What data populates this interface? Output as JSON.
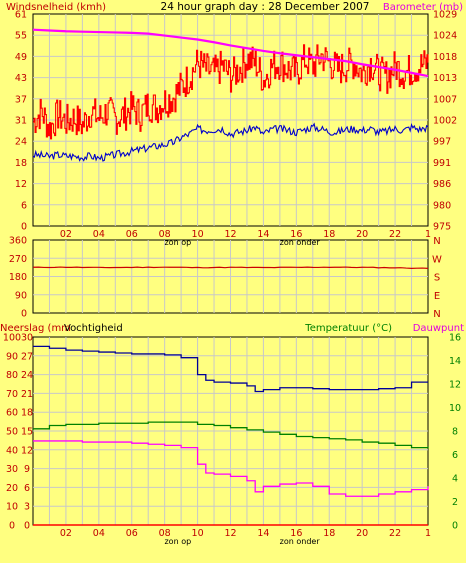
{
  "title": "24 hour graph day : 28 December 2007",
  "colors": {
    "background": "#FFFF80",
    "grid": "#C8C8C8",
    "axis_text": "#C00000",
    "wind_label": "#C00000",
    "baro_label": "#E000E0",
    "temp_label": "#008000",
    "dew_label": "#E000E0",
    "wind": "#FF0000",
    "gust": "#0000CC",
    "pressure": "#FF00FF",
    "direction": "#CC0000",
    "humidity": "#000099",
    "temperature": "#008000",
    "dewpoint": "#FF00FF",
    "rain": "#FF0000"
  },
  "chart_data": [
    {
      "type": "line",
      "ylabel_left": "Windsnelheid (kmh)",
      "ylabel_right": "Barometer (mb)",
      "y_ticks_left": [
        "61",
        "55",
        "49",
        "43",
        "37",
        "31",
        "24",
        "18",
        "12",
        "6",
        "0"
      ],
      "y_ticks_right": [
        "1029",
        "1024",
        "1018",
        "1013",
        "1007",
        "1002",
        "997",
        "991",
        "986",
        "980",
        "975"
      ],
      "x_ticks": [
        "02",
        "04",
        "06",
        "08",
        "10",
        "12",
        "14",
        "16",
        "18",
        "20",
        "22",
        "1"
      ],
      "x_markers": [
        "zon op",
        "zon onder"
      ],
      "x_marker_positions": [
        8.8,
        16.2
      ],
      "ylim_left": [
        0,
        61
      ],
      "ylim_right": [
        975,
        1029
      ],
      "xlim": [
        0,
        24
      ],
      "series": [
        {
          "key": "wind",
          "color": "#FF0000",
          "x": [
            0.0,
            0.5,
            1.0,
            1.5,
            2.0,
            2.5,
            3.0,
            3.5,
            4.0,
            4.5,
            5.0,
            5.5,
            6.0,
            6.5,
            7.0,
            7.5,
            8.0,
            8.5,
            9.0,
            9.5,
            10.0,
            10.5,
            11.0,
            11.5,
            12.0,
            12.5,
            13.0,
            13.5,
            14.0,
            14.5,
            15.0,
            15.5,
            16.0,
            16.5,
            17.0,
            17.5,
            18.0,
            18.5,
            19.0,
            19.5,
            20.0,
            20.5,
            21.0,
            21.5,
            22.0,
            22.5,
            23.0,
            23.5,
            24.0
          ],
          "y": [
            30,
            33,
            28,
            32,
            30,
            31,
            29,
            33,
            31,
            33,
            31,
            32,
            34,
            32,
            35,
            34,
            36,
            37,
            40,
            43,
            47,
            45,
            44,
            46,
            43,
            45,
            48,
            47,
            42,
            46,
            47,
            45,
            44,
            48,
            46,
            49,
            47,
            45,
            46,
            47,
            44,
            47,
            44,
            43,
            46,
            44,
            45,
            46,
            47
          ]
        },
        {
          "key": "gust",
          "color": "#0000CC",
          "x": [
            0.0,
            0.5,
            1.0,
            1.5,
            2.0,
            2.5,
            3.0,
            3.5,
            4.0,
            4.5,
            5.0,
            5.5,
            6.0,
            6.5,
            7.0,
            7.5,
            8.0,
            8.5,
            9.0,
            9.5,
            10.0,
            10.5,
            11.0,
            11.5,
            12.0,
            12.5,
            13.0,
            13.5,
            14.0,
            14.5,
            15.0,
            15.5,
            16.0,
            16.5,
            17.0,
            17.5,
            18.0,
            18.5,
            19.0,
            19.5,
            20.0,
            20.5,
            21.0,
            21.5,
            22.0,
            22.5,
            23.0,
            23.5,
            24.0
          ],
          "y": [
            20.5,
            20.3,
            20.0,
            20.5,
            20.2,
            20.1,
            19.8,
            20.2,
            19.5,
            20.0,
            20.5,
            21.0,
            21.5,
            22.0,
            22.5,
            23.0,
            23.5,
            24.0,
            25.5,
            26.5,
            28.0,
            27.5,
            27.8,
            28.0,
            26.5,
            27.0,
            27.5,
            28.5,
            26.5,
            27.8,
            28.0,
            27.5,
            27.0,
            27.8,
            28.5,
            28.0,
            27.2,
            27.0,
            27.8,
            28.0,
            27.5,
            28.0,
            27.0,
            27.3,
            28.0,
            27.5,
            28.5,
            27.8,
            28.5
          ]
        },
        {
          "key": "pressure",
          "axis": "right",
          "color": "#FF00FF",
          "x": [
            0,
            1,
            2,
            3,
            4,
            5,
            6,
            7,
            8,
            9,
            10,
            11,
            12,
            13,
            14,
            15,
            16,
            17,
            18,
            19,
            20,
            21,
            22,
            23,
            24
          ],
          "y": [
            1025.0,
            1024.8,
            1024.6,
            1024.5,
            1024.4,
            1024.3,
            1024.2,
            1024.0,
            1023.5,
            1023.0,
            1022.5,
            1021.8,
            1021.0,
            1020.3,
            1019.6,
            1019.0,
            1018.5,
            1018.0,
            1017.5,
            1017.0,
            1016.2,
            1015.5,
            1014.8,
            1014.0,
            1013.2
          ]
        }
      ]
    },
    {
      "type": "line",
      "ylabel_right_stack": [
        "N",
        "W",
        "S",
        "E",
        "N"
      ],
      "y_ticks_left": [
        "360",
        "270",
        "180",
        "90",
        "0"
      ],
      "ylim": [
        0,
        360
      ],
      "xlim": [
        0,
        24
      ],
      "series": [
        {
          "key": "direction",
          "color": "#CC0000",
          "x": [
            0,
            2,
            4,
            6,
            8,
            10,
            12,
            14,
            16,
            18,
            20,
            22,
            24
          ],
          "y": [
            225,
            226,
            224,
            225,
            226,
            224,
            225,
            224,
            225,
            226,
            225,
            223,
            220
          ]
        }
      ]
    },
    {
      "type": "line",
      "ylabel_left": "Neerslag (mm",
      "ylabel_left2": "Vochtigheid",
      "ylabel_right": "Temperatuur (°C)",
      "ylabel_right2": "Dauwpunt",
      "y_ticks_left": [
        "100",
        "90",
        "80",
        "70",
        "60",
        "50",
        "40",
        "30",
        "20",
        "10",
        "0"
      ],
      "y_ticks_mid": [
        "30",
        "27",
        "24",
        "21",
        "18",
        "15",
        "12",
        "9",
        "6",
        "3",
        "0"
      ],
      "y_ticks_right": [
        "16",
        "14",
        "12",
        "10",
        "8",
        "6",
        "4",
        "2",
        "0"
      ],
      "x_ticks": [
        "02",
        "04",
        "06",
        "08",
        "10",
        "12",
        "14",
        "16",
        "18",
        "20",
        "22",
        "1"
      ],
      "x_markers": [
        "zon op",
        "zon onder"
      ],
      "x_marker_positions": [
        8.8,
        16.2
      ],
      "ylim_humidity": [
        0,
        100
      ],
      "ylim_temperature": [
        0,
        17
      ],
      "xlim": [
        0,
        24
      ],
      "series": [
        {
          "key": "humidity",
          "axis": "left",
          "color": "#000099",
          "x": [
            0,
            1,
            2,
            3,
            4,
            5,
            6,
            7,
            8,
            9,
            10,
            10.5,
            11,
            12,
            13,
            13.5,
            14,
            15,
            16,
            17,
            18,
            19,
            20,
            21,
            22,
            23,
            24
          ],
          "y": [
            95,
            94,
            93,
            92.5,
            92,
            91.5,
            91,
            91,
            90.5,
            89,
            80,
            77,
            76,
            75.5,
            74,
            71,
            72,
            73,
            73,
            72.5,
            72,
            72,
            72,
            72.5,
            73,
            76,
            76
          ]
        },
        {
          "key": "temperature",
          "axis": "right",
          "color": "#008000",
          "x": [
            0,
            1,
            2,
            3,
            4,
            5,
            6,
            7,
            8,
            9,
            10,
            11,
            12,
            13,
            14,
            15,
            16,
            17,
            18,
            19,
            20,
            21,
            22,
            23,
            24
          ],
          "y": [
            8.7,
            9.0,
            9.1,
            9.1,
            9.2,
            9.2,
            9.2,
            9.3,
            9.3,
            9.3,
            9.1,
            9.0,
            8.8,
            8.6,
            8.4,
            8.2,
            8.0,
            7.9,
            7.8,
            7.7,
            7.5,
            7.4,
            7.2,
            7.0,
            7.1
          ]
        },
        {
          "key": "dewpoint",
          "axis": "right",
          "color": "#FF00FF",
          "x": [
            0,
            1,
            2,
            3,
            4,
            5,
            6,
            7,
            8,
            9,
            10,
            10.5,
            11,
            12,
            13,
            13.5,
            14,
            15,
            16,
            17,
            18,
            19,
            20,
            21,
            22,
            23,
            24
          ],
          "y": [
            7.6,
            7.6,
            7.6,
            7.5,
            7.5,
            7.5,
            7.4,
            7.3,
            7.2,
            7.0,
            5.5,
            4.7,
            4.6,
            4.4,
            4.0,
            3.0,
            3.5,
            3.7,
            3.8,
            3.5,
            2.8,
            2.6,
            2.6,
            2.8,
            3.0,
            3.2,
            3.5
          ]
        },
        {
          "key": "rain",
          "axis": "left",
          "color": "#FF0000",
          "x": [
            0,
            24
          ],
          "y": [
            0,
            0
          ]
        }
      ]
    }
  ]
}
